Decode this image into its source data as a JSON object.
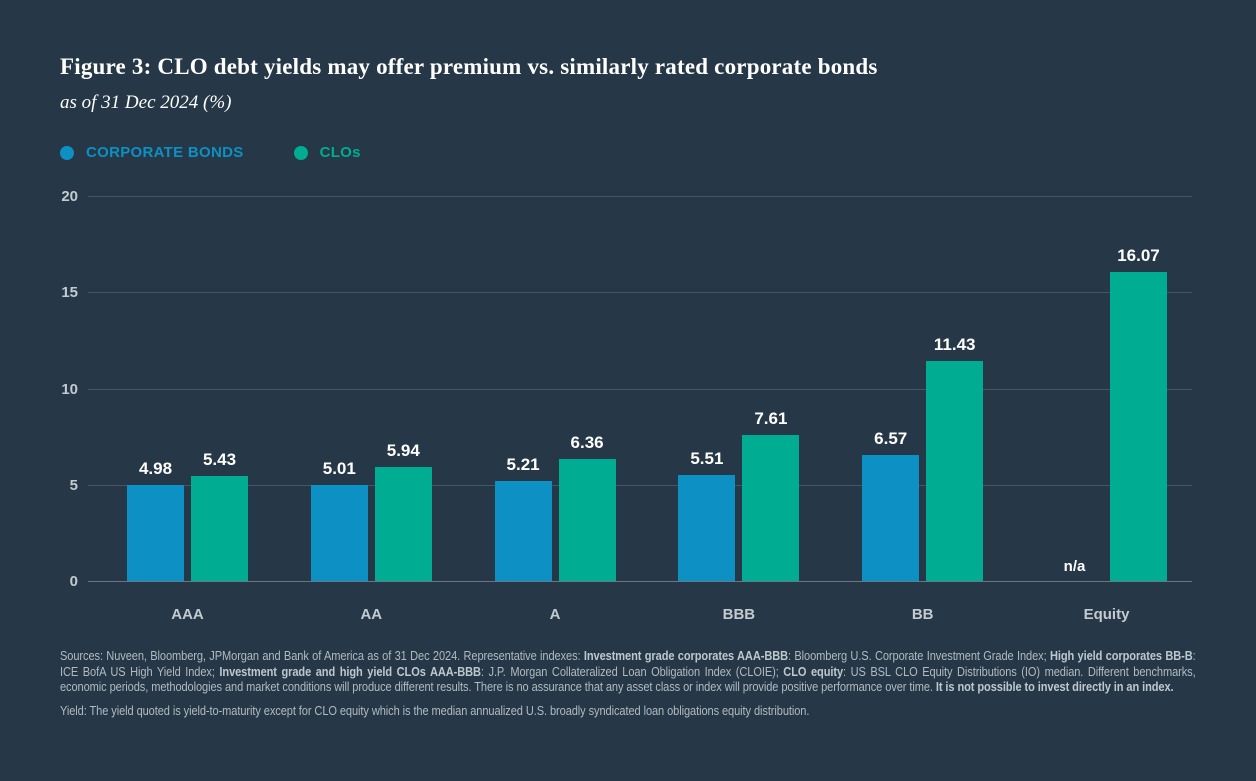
{
  "header": {
    "title": "Figure 3: CLO debt yields may offer premium vs. similarly rated corporate bonds",
    "subtitle": "as of 31 Dec 2024 (%)"
  },
  "colors": {
    "background": "#263847",
    "corporate_bonds": "#0d90c3",
    "clos": "#00ac92",
    "axis_text": "#c3cad0",
    "value_label": "#ffffff",
    "footnote_text": "#b2bac1"
  },
  "chart_data": {
    "type": "bar",
    "title": "Figure 3: CLO debt yields may offer premium vs. similarly rated corporate bonds",
    "subtitle": "as of 31 Dec 2024 (%)",
    "categories": [
      "AAA",
      "AA",
      "A",
      "BBB",
      "BB",
      "Equity"
    ],
    "series": [
      {
        "name": "CORPORATE BONDS",
        "color": "#0d90c3",
        "values": [
          4.98,
          5.01,
          5.21,
          5.51,
          6.57,
          null
        ]
      },
      {
        "name": "CLOs",
        "color": "#00ac92",
        "values": [
          5.43,
          5.94,
          6.36,
          7.61,
          11.43,
          16.07
        ]
      }
    ],
    "null_label": "n/a",
    "value_label_decimals": 2,
    "ylim": [
      0,
      20
    ],
    "yticks": [
      0,
      5,
      10,
      15,
      20
    ],
    "grid": true,
    "legend_position": "top-left"
  },
  "footnotes": {
    "paragraph1_segments": [
      {
        "text": "Sources: Nuveen, Bloomberg, JPMorgan and Bank of America as of 31 Dec 2024. Representative indexes: ",
        "bold": false
      },
      {
        "text": "Investment grade corporates AAA-BBB",
        "bold": true
      },
      {
        "text": ": Bloomberg U.S. Corporate Investment Grade Index; ",
        "bold": false
      },
      {
        "text": "High yield corporates BB-B",
        "bold": true
      },
      {
        "text": ": ICE BofA US High Yield Index; ",
        "bold": false
      },
      {
        "text": "Investment grade and high yield CLOs AAA-BBB",
        "bold": true
      },
      {
        "text": ": J.P. Morgan Collateralized Loan Obligation Index (CLOIE); ",
        "bold": false
      },
      {
        "text": "CLO equity",
        "bold": true
      },
      {
        "text": ": US BSL CLO Equity Distributions (IO) median. Different benchmarks, economic periods, methodologies and market conditions will produce different results. There is no assurance that any asset class or index will provide positive performance over time. ",
        "bold": false
      },
      {
        "text": "It is not possible to invest directly in an index.",
        "bold": true
      }
    ],
    "paragraph2": "Yield: The yield quoted is yield-to-maturity except for CLO equity which is the median annualized U.S. broadly syndicated loan obligations equity distribution."
  }
}
